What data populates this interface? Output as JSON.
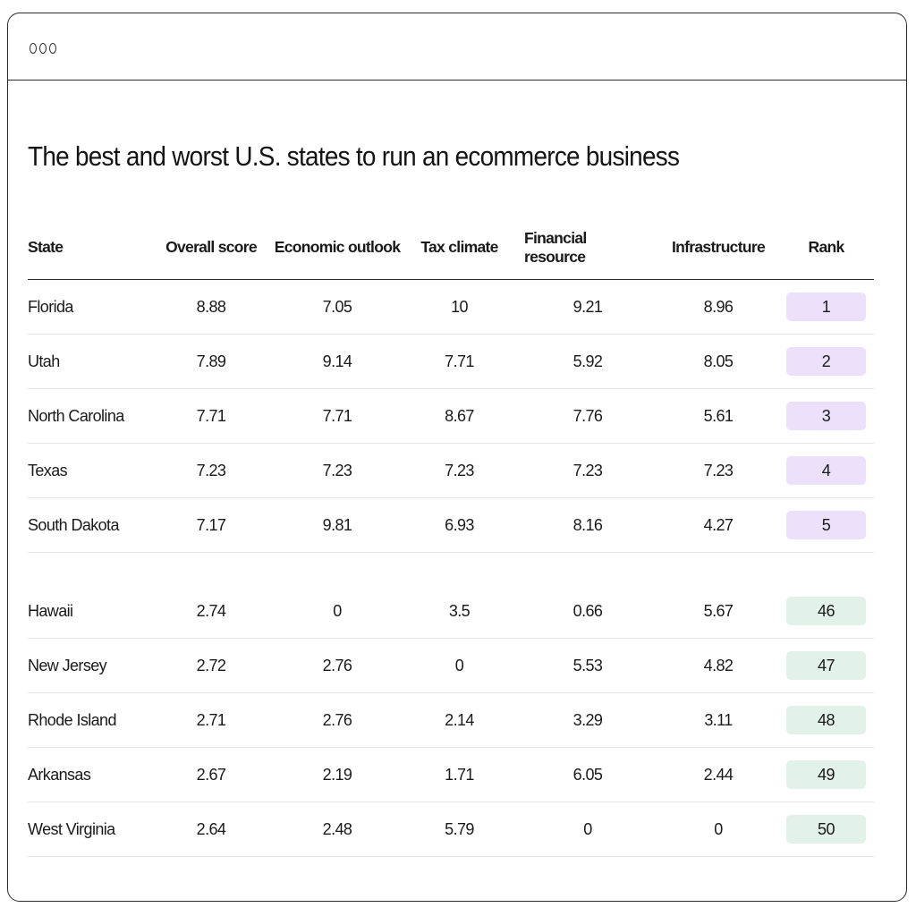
{
  "title": "The best and worst U.S. states to run an ecommerce business",
  "colors": {
    "best_rank_bg": "#ece0fb",
    "worst_rank_bg": "#e2f2ea",
    "border": "#2a2a2a"
  },
  "columns": {
    "state": "State",
    "overall": "Overall score",
    "econ": "Economic outlook",
    "tax": "Tax climate",
    "fin": "Financial resource",
    "infra": "Infrastructure",
    "rank": "Rank"
  },
  "best_rows": [
    {
      "state": "Florida",
      "overall": "8.88",
      "econ": "7.05",
      "tax": "10",
      "fin": "9.21",
      "infra": "8.96",
      "rank": "1"
    },
    {
      "state": "Utah",
      "overall": "7.89",
      "econ": "9.14",
      "tax": "7.71",
      "fin": "5.92",
      "infra": "8.05",
      "rank": "2"
    },
    {
      "state": "North Carolina",
      "overall": "7.71",
      "econ": "7.71",
      "tax": "8.67",
      "fin": "7.76",
      "infra": "5.61",
      "rank": "3"
    },
    {
      "state": "Texas",
      "overall": "7.23",
      "econ": "7.23",
      "tax": "7.23",
      "fin": "7.23",
      "infra": "7.23",
      "rank": "4"
    },
    {
      "state": "South Dakota",
      "overall": "7.17",
      "econ": "9.81",
      "tax": "6.93",
      "fin": "8.16",
      "infra": "4.27",
      "rank": "5"
    }
  ],
  "worst_rows": [
    {
      "state": "Hawaii",
      "overall": "2.74",
      "econ": "0",
      "tax": "3.5",
      "fin": "0.66",
      "infra": "5.67",
      "rank": "46"
    },
    {
      "state": "New Jersey",
      "overall": "2.72",
      "econ": "2.76",
      "tax": "0",
      "fin": "5.53",
      "infra": "4.82",
      "rank": "47"
    },
    {
      "state": "Rhode Island",
      "overall": "2.71",
      "econ": "2.76",
      "tax": "2.14",
      "fin": "3.29",
      "infra": "3.11",
      "rank": "48"
    },
    {
      "state": "Arkansas",
      "overall": "2.67",
      "econ": "2.19",
      "tax": "1.71",
      "fin": "6.05",
      "infra": "2.44",
      "rank": "49"
    },
    {
      "state": "West Virginia",
      "overall": "2.64",
      "econ": "2.48",
      "tax": "5.79",
      "fin": "0",
      "infra": "0",
      "rank": "50"
    }
  ]
}
